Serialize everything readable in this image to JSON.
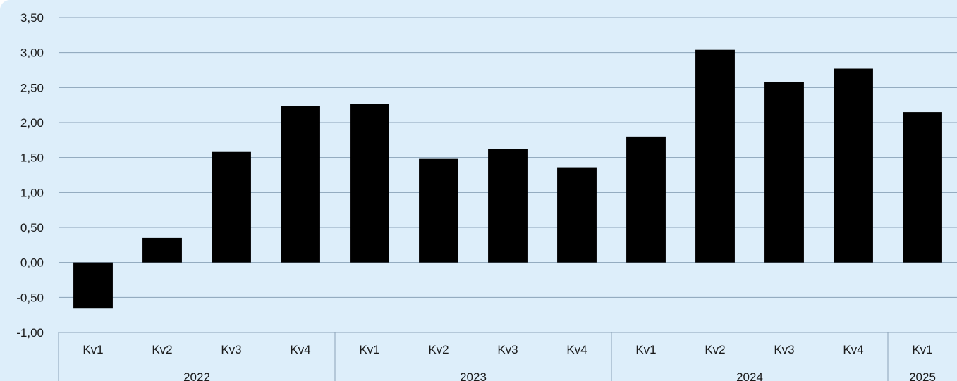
{
  "chart_data": {
    "type": "bar",
    "title": "",
    "xlabel": "",
    "ylabel": "",
    "ylim": [
      -1.0,
      3.5
    ],
    "yticks": [
      "3,50",
      "3,00",
      "2,50",
      "2,00",
      "1,50",
      "1,00",
      "0,50",
      "0,00",
      "-0,50",
      "-1,00"
    ],
    "ytick_values": [
      3.5,
      3.0,
      2.5,
      2.0,
      1.5,
      1.0,
      0.5,
      0.0,
      -0.5,
      -1.0
    ],
    "grid": true,
    "legend": "none",
    "bar_color": "#000000",
    "background_color": "#ddeefa",
    "categories": [
      "Kv1",
      "Kv2",
      "Kv3",
      "Kv4",
      "Kv1",
      "Kv2",
      "Kv3",
      "Kv4",
      "Kv1",
      "Kv2",
      "Kv3",
      "Kv4",
      "Kv1"
    ],
    "groups": [
      {
        "label": "2022",
        "count": 4
      },
      {
        "label": "2023",
        "count": 4
      },
      {
        "label": "2024",
        "count": 4
      },
      {
        "label": "2025",
        "count": 1
      }
    ],
    "values": [
      -0.66,
      0.35,
      1.58,
      2.24,
      2.27,
      1.48,
      1.62,
      1.36,
      1.8,
      3.04,
      2.58,
      2.77,
      2.15
    ]
  }
}
